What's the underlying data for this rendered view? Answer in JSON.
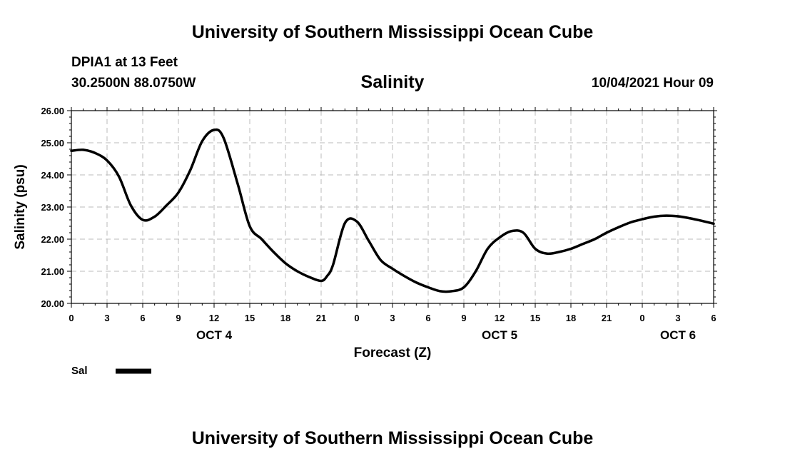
{
  "header": {
    "title": "University of Southern Mississippi Ocean Cube",
    "station": "DPIA1 at 13 Feet",
    "coordinates": "30.2500N  88.0750W",
    "chart_title": "Salinity",
    "datetime": "10/04/2021 Hour 09"
  },
  "footer": {
    "title": "University of Southern Mississippi Ocean Cube"
  },
  "colors": {
    "line": "#000000",
    "grid": "#bbbbbb",
    "background": "#ffffff"
  },
  "chart_data": {
    "type": "line",
    "title": "Salinity",
    "xlabel": "Forecast (Z)",
    "ylabel": "Salinity (psu)",
    "xlim": [
      0,
      54
    ],
    "ylim": [
      20.0,
      26.0
    ],
    "grid": true,
    "x_tick_labels": [
      "0",
      "3",
      "6",
      "9",
      "12",
      "15",
      "18",
      "21",
      "0",
      "3",
      "6",
      "9",
      "12",
      "15",
      "18",
      "21",
      "0",
      "3",
      "6"
    ],
    "y_tick_labels": [
      "20.00",
      "21.00",
      "22.00",
      "23.00",
      "24.00",
      "25.00",
      "26.00"
    ],
    "day_labels": [
      {
        "label": "OCT 4",
        "hour": 12
      },
      {
        "label": "OCT 5",
        "hour": 36
      },
      {
        "label": "OCT 6",
        "hour": 51
      }
    ],
    "legend_position": "bottom-left",
    "series": [
      {
        "name": "Sal",
        "x": [
          0,
          1,
          2,
          3,
          4,
          5,
          6,
          7,
          8,
          9,
          10,
          11,
          12,
          12.8,
          14,
          15,
          16,
          17,
          18,
          19,
          20,
          21,
          21.5,
          22,
          23,
          24,
          25,
          26,
          27,
          28,
          29,
          30,
          31,
          32,
          33,
          34,
          35,
          36,
          37,
          38,
          39,
          40,
          41,
          42,
          43,
          44,
          45,
          46,
          47,
          48,
          49,
          50,
          51,
          52,
          53,
          54
        ],
        "y": [
          24.75,
          24.78,
          24.68,
          24.45,
          23.95,
          23.05,
          22.6,
          22.7,
          23.05,
          23.45,
          24.15,
          25.05,
          25.4,
          25.15,
          23.7,
          22.4,
          22.0,
          21.6,
          21.25,
          21.0,
          20.82,
          20.7,
          20.85,
          21.2,
          22.5,
          22.55,
          21.95,
          21.35,
          21.08,
          20.85,
          20.65,
          20.5,
          20.38,
          20.38,
          20.5,
          21.0,
          21.7,
          22.05,
          22.25,
          22.2,
          21.7,
          21.55,
          21.6,
          21.7,
          21.85,
          22.0,
          22.2,
          22.37,
          22.52,
          22.62,
          22.7,
          22.73,
          22.71,
          22.65,
          22.57,
          22.48
        ]
      }
    ]
  }
}
